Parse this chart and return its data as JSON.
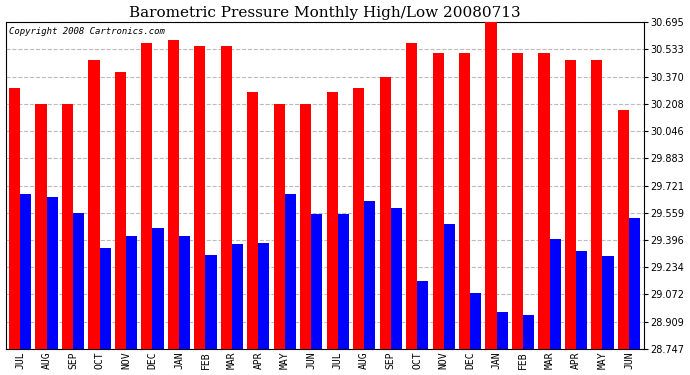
{
  "title": "Barometric Pressure Monthly High/Low 20080713",
  "copyright": "Copyright 2008 Cartronics.com",
  "categories": [
    "JUL",
    "AUG",
    "SEP",
    "OCT",
    "NOV",
    "DEC",
    "JAN",
    "FEB",
    "MAR",
    "APR",
    "MAY",
    "JUN",
    "JUL",
    "AUG",
    "SEP",
    "OCT",
    "NOV",
    "DEC",
    "JAN",
    "FEB",
    "MAR",
    "APR",
    "MAY",
    "JUN"
  ],
  "highs": [
    30.3,
    30.21,
    30.21,
    30.47,
    30.4,
    30.57,
    30.59,
    30.55,
    30.55,
    30.28,
    30.21,
    30.21,
    30.28,
    30.3,
    30.37,
    30.57,
    30.51,
    30.51,
    30.7,
    30.51,
    30.51,
    30.47,
    30.47,
    30.17
  ],
  "lows": [
    29.67,
    29.65,
    29.56,
    29.35,
    29.42,
    29.47,
    29.42,
    29.31,
    29.37,
    29.38,
    29.67,
    29.55,
    29.55,
    29.63,
    29.59,
    29.15,
    29.49,
    29.08,
    28.97,
    28.95,
    29.4,
    29.33,
    29.3,
    29.53
  ],
  "high_color": "#ff0000",
  "low_color": "#0000ff",
  "bg_color": "#ffffff",
  "grid_color": "#bbbbbb",
  "ylim_min": 28.747,
  "ylim_max": 30.695,
  "yticks": [
    28.747,
    28.909,
    29.072,
    29.234,
    29.396,
    29.559,
    29.721,
    29.883,
    30.046,
    30.208,
    30.37,
    30.533,
    30.695
  ],
  "bar_width": 0.42,
  "title_fontsize": 11,
  "tick_fontsize": 7,
  "copyright_fontsize": 6.5
}
